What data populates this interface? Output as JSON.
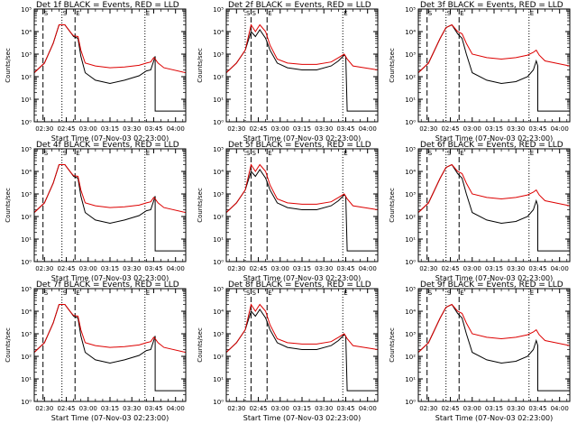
{
  "figure": {
    "ylabel": "Counts/sec",
    "xlabel": "Start Time (07-Nov-03 02:23:00)",
    "yticks": [
      "10⁰",
      "10¹",
      "10²",
      "10³",
      "10⁴",
      "10⁵"
    ],
    "xticks": [
      "02:30",
      "02:45",
      "03:00",
      "03:15",
      "03:30",
      "03:45",
      "04:00"
    ],
    "marker_labels": [
      "S",
      "S",
      "E",
      "E"
    ],
    "colors": {
      "events": "#000000",
      "lld": "#dd0000",
      "axes": "#000000",
      "background": "#ffffff"
    }
  },
  "chart_data": [
    {
      "type": "line",
      "title": "Det 1f BLACK = Events, RED = LLD",
      "xlabel": "Start Time (07-Nov-03 02:23:00)",
      "ylabel": "Counts/sec",
      "x_range": [
        "02:23",
        "04:07"
      ],
      "ylim": [
        1,
        100000
      ],
      "yscale": "log",
      "vlines_dashed": [
        "02:29",
        "02:51"
      ],
      "vlines_dotted": [
        "02:42",
        "03:39"
      ],
      "series": [
        {
          "name": "Events",
          "x": [
            "02:23",
            "02:30",
            "02:36",
            "02:40",
            "02:44",
            "02:48",
            "02:50",
            "02:53",
            "02:55",
            "02:58",
            "03:05",
            "03:15",
            "03:25",
            "03:35",
            "03:40",
            "03:43",
            "03:45",
            "03:46",
            "03:46",
            "03:47",
            "04:07"
          ],
          "values": [
            150,
            400,
            3000,
            20000,
            20000,
            9000,
            6000,
            5000,
            800,
            150,
            70,
            50,
            70,
            110,
            180,
            200,
            500,
            800,
            3,
            3,
            3
          ]
        },
        {
          "name": "LLD",
          "x": [
            "02:23",
            "02:30",
            "02:36",
            "02:40",
            "02:44",
            "02:48",
            "02:50",
            "02:53",
            "02:55",
            "02:58",
            "03:05",
            "03:15",
            "03:25",
            "03:35",
            "03:40",
            "03:43",
            "03:45",
            "03:46",
            "03:48",
            "03:52",
            "04:07"
          ],
          "values": [
            150,
            400,
            3000,
            20000,
            20000,
            9000,
            6500,
            6000,
            1500,
            400,
            300,
            250,
            270,
            320,
            400,
            450,
            700,
            600,
            400,
            250,
            150
          ]
        }
      ]
    },
    {
      "type": "line",
      "title": "Det 2f BLACK = Events, RED = LLD",
      "xlabel": "Start Time (07-Nov-03 02:23:00)",
      "ylabel": "Counts/sec",
      "x_range": [
        "02:23",
        "04:07"
      ],
      "ylim": [
        1,
        100000
      ],
      "yscale": "log",
      "vlines_dashed": [
        "02:40",
        "02:51"
      ],
      "vlines_dotted": [
        "02:36",
        "03:43"
      ],
      "series": [
        {
          "name": "Events",
          "x": [
            "02:23",
            "02:30",
            "02:36",
            "02:40",
            "02:43",
            "02:46",
            "02:50",
            "02:53",
            "02:58",
            "03:05",
            "03:15",
            "03:25",
            "03:35",
            "03:40",
            "03:44",
            "03:45",
            "03:46",
            "03:47",
            "04:07"
          ],
          "values": [
            150,
            400,
            1500,
            10000,
            6000,
            12000,
            5000,
            1500,
            400,
            250,
            200,
            200,
            300,
            500,
            900,
            800,
            3,
            3,
            3
          ]
        },
        {
          "name": "LLD",
          "x": [
            "02:23",
            "02:30",
            "02:36",
            "02:40",
            "02:43",
            "02:46",
            "02:50",
            "02:53",
            "02:58",
            "03:05",
            "03:15",
            "03:25",
            "03:35",
            "03:40",
            "03:44",
            "03:46",
            "03:50",
            "04:07"
          ],
          "values": [
            150,
            400,
            1500,
            20000,
            10000,
            20000,
            10000,
            2500,
            600,
            400,
            350,
            350,
            450,
            700,
            1000,
            600,
            300,
            200
          ]
        }
      ]
    },
    {
      "type": "line",
      "title": "Det 3f BLACK = Events, RED = LLD",
      "xlabel": "Start Time (07-Nov-03 02:23:00)",
      "ylabel": "Counts/sec",
      "x_range": [
        "02:23",
        "04:07"
      ],
      "ylim": [
        1,
        100000
      ],
      "yscale": "log",
      "vlines_dashed": [
        "02:29",
        "02:51"
      ],
      "vlines_dotted": [
        "02:42",
        "03:39"
      ],
      "series": [
        {
          "name": "Events",
          "x": [
            "02:23",
            "02:30",
            "02:38",
            "02:42",
            "02:46",
            "02:50",
            "02:53",
            "02:56",
            "03:00",
            "03:10",
            "03:20",
            "03:30",
            "03:38",
            "03:42",
            "03:44",
            "03:45",
            "03:45",
            "04:07"
          ],
          "values": [
            150,
            400,
            5000,
            15000,
            20000,
            8000,
            5000,
            1000,
            150,
            70,
            50,
            60,
            100,
            200,
            500,
            300,
            3,
            3
          ]
        },
        {
          "name": "LLD",
          "x": [
            "02:23",
            "02:30",
            "02:38",
            "02:42",
            "02:46",
            "02:50",
            "02:53",
            "02:56",
            "03:00",
            "03:10",
            "03:20",
            "03:30",
            "03:38",
            "03:42",
            "03:44",
            "03:46",
            "03:50",
            "04:07"
          ],
          "values": [
            150,
            400,
            5000,
            15000,
            20000,
            10000,
            8000,
            3000,
            1000,
            700,
            600,
            700,
            900,
            1200,
            1500,
            900,
            500,
            300
          ]
        }
      ]
    },
    {
      "type": "line",
      "title": "Det 4f BLACK = Events, RED = LLD",
      "xlabel": "Start Time (07-Nov-03 02:23:00)",
      "ylabel": "Counts/sec",
      "x_range": [
        "02:23",
        "04:07"
      ],
      "ylim": [
        1,
        100000
      ],
      "yscale": "log",
      "vlines_dashed": [
        "02:29",
        "02:51"
      ],
      "vlines_dotted": [
        "02:42",
        "03:39"
      ],
      "series": [
        {
          "name": "Events",
          "x": [
            "02:23",
            "02:30",
            "02:36",
            "02:40",
            "02:44",
            "02:48",
            "02:50",
            "02:53",
            "02:55",
            "02:58",
            "03:05",
            "03:15",
            "03:25",
            "03:35",
            "03:40",
            "03:43",
            "03:45",
            "03:46",
            "03:46",
            "03:47",
            "04:07"
          ],
          "values": [
            150,
            400,
            3000,
            20000,
            20000,
            9000,
            6000,
            5000,
            800,
            150,
            70,
            50,
            70,
            110,
            180,
            200,
            500,
            800,
            3,
            3,
            3
          ]
        },
        {
          "name": "LLD",
          "x": [
            "02:23",
            "02:30",
            "02:36",
            "02:40",
            "02:44",
            "02:48",
            "02:50",
            "02:53",
            "02:55",
            "02:58",
            "03:05",
            "03:15",
            "03:25",
            "03:35",
            "03:40",
            "03:43",
            "03:45",
            "03:46",
            "03:48",
            "03:52",
            "04:07"
          ],
          "values": [
            150,
            400,
            3000,
            20000,
            20000,
            9000,
            6500,
            6000,
            1500,
            400,
            300,
            250,
            270,
            320,
            400,
            450,
            700,
            600,
            400,
            250,
            150
          ]
        }
      ]
    },
    {
      "type": "line",
      "title": "Det 5f BLACK = Events, RED = LLD",
      "xlabel": "Start Time (07-Nov-03 02:23:00)",
      "ylabel": "Counts/sec",
      "x_range": [
        "02:23",
        "04:07"
      ],
      "ylim": [
        1,
        100000
      ],
      "yscale": "log",
      "vlines_dashed": [
        "02:40",
        "02:51"
      ],
      "vlines_dotted": [
        "02:36",
        "03:43"
      ],
      "series": [
        {
          "name": "Events",
          "x": [
            "02:23",
            "02:30",
            "02:36",
            "02:40",
            "02:43",
            "02:46",
            "02:50",
            "02:53",
            "02:58",
            "03:05",
            "03:15",
            "03:25",
            "03:35",
            "03:40",
            "03:44",
            "03:45",
            "03:46",
            "03:47",
            "04:07"
          ],
          "values": [
            150,
            400,
            1500,
            10000,
            6000,
            12000,
            5000,
            1500,
            400,
            250,
            200,
            200,
            300,
            500,
            900,
            800,
            3,
            3,
            3
          ]
        },
        {
          "name": "LLD",
          "x": [
            "02:23",
            "02:30",
            "02:36",
            "02:40",
            "02:43",
            "02:46",
            "02:50",
            "02:53",
            "02:58",
            "03:05",
            "03:15",
            "03:25",
            "03:35",
            "03:40",
            "03:44",
            "03:46",
            "03:50",
            "04:07"
          ],
          "values": [
            150,
            400,
            1500,
            20000,
            10000,
            20000,
            10000,
            2500,
            600,
            400,
            350,
            350,
            450,
            700,
            1000,
            600,
            300,
            200
          ]
        }
      ]
    },
    {
      "type": "line",
      "title": "Det 6f BLACK = Events, RED = LLD",
      "xlabel": "Start Time (07-Nov-03 02:23:00)",
      "ylabel": "Counts/sec",
      "x_range": [
        "02:23",
        "04:07"
      ],
      "ylim": [
        1,
        100000
      ],
      "yscale": "log",
      "vlines_dashed": [
        "02:29",
        "02:51"
      ],
      "vlines_dotted": [
        "02:42",
        "03:39"
      ],
      "series": [
        {
          "name": "Events",
          "x": [
            "02:23",
            "02:30",
            "02:38",
            "02:42",
            "02:46",
            "02:50",
            "02:53",
            "02:56",
            "03:00",
            "03:10",
            "03:20",
            "03:30",
            "03:38",
            "03:42",
            "03:44",
            "03:45",
            "03:45",
            "04:07"
          ],
          "values": [
            150,
            400,
            5000,
            15000,
            20000,
            8000,
            5000,
            1000,
            150,
            70,
            50,
            60,
            100,
            200,
            500,
            300,
            3,
            3
          ]
        },
        {
          "name": "LLD",
          "x": [
            "02:23",
            "02:30",
            "02:38",
            "02:42",
            "02:46",
            "02:50",
            "02:53",
            "02:56",
            "03:00",
            "03:10",
            "03:20",
            "03:30",
            "03:38",
            "03:42",
            "03:44",
            "03:46",
            "03:50",
            "04:07"
          ],
          "values": [
            150,
            400,
            5000,
            15000,
            20000,
            10000,
            8000,
            3000,
            1000,
            700,
            600,
            700,
            900,
            1200,
            1500,
            900,
            500,
            300
          ]
        }
      ]
    },
    {
      "type": "line",
      "title": "Det 7f BLACK = Events, RED = LLD",
      "xlabel": "Start Time (07-Nov-03 02:23:00)",
      "ylabel": "Counts/sec",
      "x_range": [
        "02:23",
        "04:07"
      ],
      "ylim": [
        1,
        100000
      ],
      "yscale": "log",
      "vlines_dashed": [
        "02:29",
        "02:51"
      ],
      "vlines_dotted": [
        "02:42",
        "03:39"
      ],
      "series": [
        {
          "name": "Events",
          "x": [
            "02:23",
            "02:30",
            "02:36",
            "02:40",
            "02:44",
            "02:48",
            "02:50",
            "02:53",
            "02:55",
            "02:58",
            "03:05",
            "03:15",
            "03:25",
            "03:35",
            "03:40",
            "03:43",
            "03:45",
            "03:46",
            "03:46",
            "03:47",
            "04:07"
          ],
          "values": [
            150,
            400,
            3000,
            20000,
            20000,
            9000,
            6000,
            5000,
            800,
            150,
            70,
            50,
            70,
            110,
            180,
            200,
            500,
            800,
            3,
            3,
            3
          ]
        },
        {
          "name": "LLD",
          "x": [
            "02:23",
            "02:30",
            "02:36",
            "02:40",
            "02:44",
            "02:48",
            "02:50",
            "02:53",
            "02:55",
            "02:58",
            "03:05",
            "03:15",
            "03:25",
            "03:35",
            "03:40",
            "03:43",
            "03:45",
            "03:46",
            "03:48",
            "03:52",
            "04:07"
          ],
          "values": [
            150,
            400,
            3000,
            20000,
            20000,
            9000,
            6500,
            6000,
            1500,
            400,
            300,
            250,
            270,
            320,
            400,
            450,
            700,
            600,
            400,
            250,
            150
          ]
        }
      ]
    },
    {
      "type": "line",
      "title": "Det 8f BLACK = Events, RED = LLD",
      "xlabel": "Start Time (07-Nov-03 02:23:00)",
      "ylabel": "Counts/sec",
      "x_range": [
        "02:23",
        "04:07"
      ],
      "ylim": [
        1,
        100000
      ],
      "yscale": "log",
      "vlines_dashed": [
        "02:40",
        "02:51"
      ],
      "vlines_dotted": [
        "02:36",
        "03:43"
      ],
      "series": [
        {
          "name": "Events",
          "x": [
            "02:23",
            "02:30",
            "02:36",
            "02:40",
            "02:43",
            "02:46",
            "02:50",
            "02:53",
            "02:58",
            "03:05",
            "03:15",
            "03:25",
            "03:35",
            "03:40",
            "03:44",
            "03:45",
            "03:46",
            "03:47",
            "04:07"
          ],
          "values": [
            150,
            400,
            1500,
            10000,
            6000,
            12000,
            5000,
            1500,
            400,
            250,
            200,
            200,
            300,
            500,
            900,
            800,
            3,
            3,
            3
          ]
        },
        {
          "name": "LLD",
          "x": [
            "02:23",
            "02:30",
            "02:36",
            "02:40",
            "02:43",
            "02:46",
            "02:50",
            "02:53",
            "02:58",
            "03:05",
            "03:15",
            "03:25",
            "03:35",
            "03:40",
            "03:44",
            "03:46",
            "03:50",
            "04:07"
          ],
          "values": [
            150,
            400,
            1500,
            20000,
            10000,
            20000,
            10000,
            2500,
            600,
            400,
            350,
            350,
            450,
            700,
            1000,
            600,
            300,
            200
          ]
        }
      ]
    },
    {
      "type": "line",
      "title": "Det 9f BLACK = Events, RED = LLD",
      "xlabel": "Start Time (07-Nov-03 02:23:00)",
      "ylabel": "Counts/sec",
      "x_range": [
        "02:23",
        "04:07"
      ],
      "ylim": [
        1,
        100000
      ],
      "yscale": "log",
      "vlines_dashed": [
        "02:29",
        "02:51"
      ],
      "vlines_dotted": [
        "02:42",
        "03:39"
      ],
      "series": [
        {
          "name": "Events",
          "x": [
            "02:23",
            "02:30",
            "02:38",
            "02:42",
            "02:46",
            "02:50",
            "02:53",
            "02:56",
            "03:00",
            "03:10",
            "03:20",
            "03:30",
            "03:38",
            "03:42",
            "03:44",
            "03:45",
            "03:45",
            "04:07"
          ],
          "values": [
            150,
            400,
            5000,
            15000,
            20000,
            8000,
            5000,
            1000,
            150,
            70,
            50,
            60,
            100,
            200,
            500,
            300,
            3,
            3
          ]
        },
        {
          "name": "LLD",
          "x": [
            "02:23",
            "02:30",
            "02:38",
            "02:42",
            "02:46",
            "02:50",
            "02:53",
            "02:56",
            "03:00",
            "03:10",
            "03:20",
            "03:30",
            "03:38",
            "03:42",
            "03:44",
            "03:46",
            "03:50",
            "04:07"
          ],
          "values": [
            150,
            400,
            5000,
            15000,
            20000,
            10000,
            8000,
            3000,
            1000,
            700,
            600,
            700,
            900,
            1200,
            1500,
            900,
            500,
            300
          ]
        }
      ]
    }
  ]
}
